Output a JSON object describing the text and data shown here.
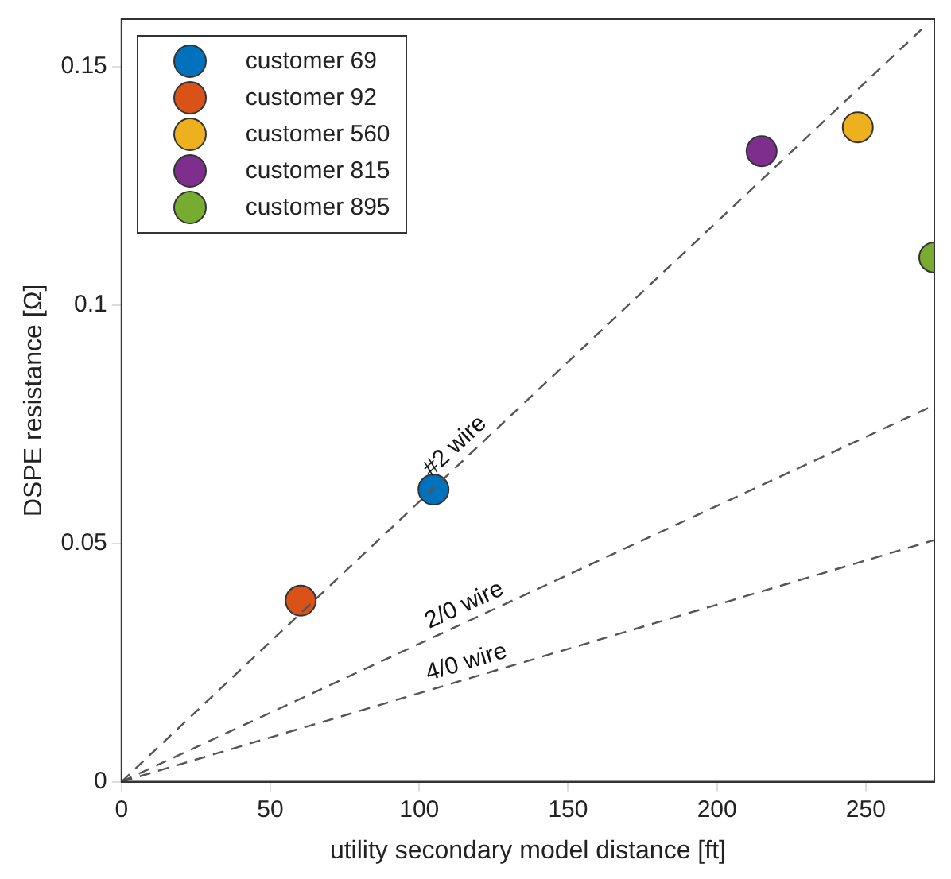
{
  "chart_data": {
    "type": "scatter",
    "xlabel": "utility secondary model distance [ft]",
    "ylabel": "DSPE resistance [Ω]",
    "xlim": [
      0,
      273
    ],
    "ylim": [
      0,
      0.16
    ],
    "xticks": [
      0,
      50,
      100,
      150,
      200,
      250
    ],
    "yticks": [
      0,
      0.05,
      0.1,
      0.15
    ],
    "grid": false,
    "legend": "top left",
    "marker": "circle",
    "series": [
      {
        "type": "line",
        "line_style": "dashed",
        "marker": "none",
        "color": "#555555",
        "x": [
          0,
          269
        ],
        "values": [
          0,
          0.158
        ]
      },
      {
        "type": "line",
        "line_style": "dashed",
        "marker": "none",
        "color": "#555555",
        "x": [
          0,
          273
        ],
        "values": [
          0,
          0.079
        ]
      },
      {
        "type": "line",
        "line_style": "dashed",
        "marker": "none",
        "color": "#555555",
        "x": [
          0,
          273
        ],
        "values": [
          0,
          0.0507
        ]
      },
      {
        "name": "customer 69",
        "color": "#0072bd",
        "x": [
          104.8
        ],
        "values": [
          0.0613
        ]
      },
      {
        "name": "customer 92",
        "color": "#d95319",
        "x": [
          60.2
        ],
        "values": [
          0.038
        ]
      },
      {
        "name": "customer 560",
        "color": "#edb120",
        "x": [
          247.3
        ],
        "values": [
          0.1373
        ]
      },
      {
        "name": "customer 815",
        "color": "#7e2f8e",
        "x": [
          215
        ],
        "values": [
          0.1323
        ]
      },
      {
        "name": "customer 895",
        "color": "#77ac30",
        "x": [
          273
        ],
        "values": [
          0.11
        ]
      }
    ],
    "annotations": [
      "#2 wire",
      "2/0 wire",
      "4/0 wire"
    ]
  }
}
